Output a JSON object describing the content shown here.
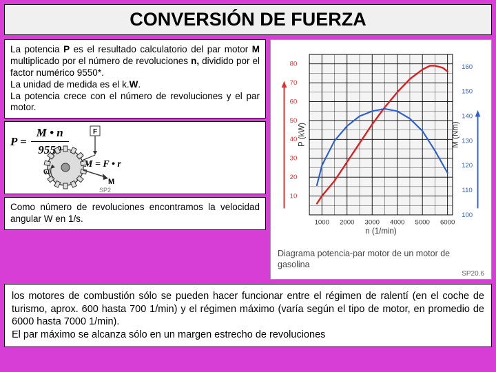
{
  "title": "CONVERSIÓN DE FUERZA",
  "text_top": "La potencia P es el resultado calculatorio del par motor M multiplicado por el número de revoluciones n, dividido por el factor numérico 9550*.\nLa unidad de medida es el k.W.\nLa potencia crece con el número de revoluciones y el par motor.",
  "formula": {
    "lhs": "P =",
    "num": "M • n",
    "den": "9550"
  },
  "formula2": "M = F • r",
  "gear_labels": {
    "F": "F",
    "r": "r",
    "M": "M",
    "omega": "ω"
  },
  "text_mid": "Como número de revoluciones encontramos la velocidad angular W en 1/s.",
  "text_bottom": "los motores de combustión sólo se pueden hacer funcionar entre el régimen de ralentí (en el coche de turismo, aprox. 600 hasta 700 1/min) y el régimen máximo (varía según el tipo de motor, en promedio de 6000 hasta 7000 1/min).\nEl par máximo se alcanza sólo en un margen estrecho de revoluciones",
  "chart": {
    "type": "line",
    "background_color": "#ffffff",
    "plot_bg": "#f4f4f4",
    "grid_color": "#000000",
    "grid_width": 0.6,
    "axis_color": "#000000",
    "x": {
      "label": "n (1/min)",
      "label_fontsize": 12,
      "min": 500,
      "max": 6200,
      "major_ticks": [
        1000,
        2000,
        3000,
        4000,
        5000,
        6000
      ],
      "tick_labels": [
        "1000",
        "2000",
        "3000",
        "4000",
        "5000",
        "6000"
      ]
    },
    "y_left": {
      "label": "P (kW)",
      "label_fontsize": 12,
      "color": "#e03030",
      "min": 0,
      "max": 85,
      "ticks": [
        10,
        20,
        30,
        40,
        50,
        60,
        70,
        80
      ],
      "tick_color": "#e03030",
      "arrow": true
    },
    "y_right": {
      "label": "M (Nm)",
      "label_fontsize": 12,
      "color": "#3060d0",
      "min": 100,
      "max": 165,
      "ticks": [
        100,
        110,
        120,
        130,
        140,
        150,
        160
      ],
      "tick_color": "#3060d0",
      "arrow": true
    },
    "series": [
      {
        "name": "P",
        "color": "#d81e1e",
        "width": 2.4,
        "points": [
          [
            800,
            6
          ],
          [
            1000,
            10
          ],
          [
            1500,
            18
          ],
          [
            2000,
            28
          ],
          [
            2500,
            38
          ],
          [
            3000,
            48
          ],
          [
            3500,
            57
          ],
          [
            4000,
            65
          ],
          [
            4500,
            72
          ],
          [
            5000,
            77
          ],
          [
            5300,
            79
          ],
          [
            5500,
            79
          ],
          [
            5800,
            78
          ],
          [
            6000,
            76
          ]
        ]
      },
      {
        "name": "M",
        "color": "#2a5fcf",
        "width": 2.2,
        "points_right": [
          [
            800,
            112
          ],
          [
            1000,
            120
          ],
          [
            1500,
            130
          ],
          [
            2000,
            136
          ],
          [
            2500,
            140
          ],
          [
            3000,
            142
          ],
          [
            3500,
            143
          ],
          [
            4000,
            142
          ],
          [
            4500,
            139
          ],
          [
            5000,
            134
          ],
          [
            5500,
            126
          ],
          [
            6000,
            117
          ]
        ]
      }
    ],
    "caption": "Diagrama potencia-par motor de un motor de gasolina",
    "code": "SP20.6",
    "code2": "SP2"
  },
  "colors": {
    "page_bg": "#d63ed6",
    "box_bg": "#ffffff",
    "border": "#000000"
  }
}
